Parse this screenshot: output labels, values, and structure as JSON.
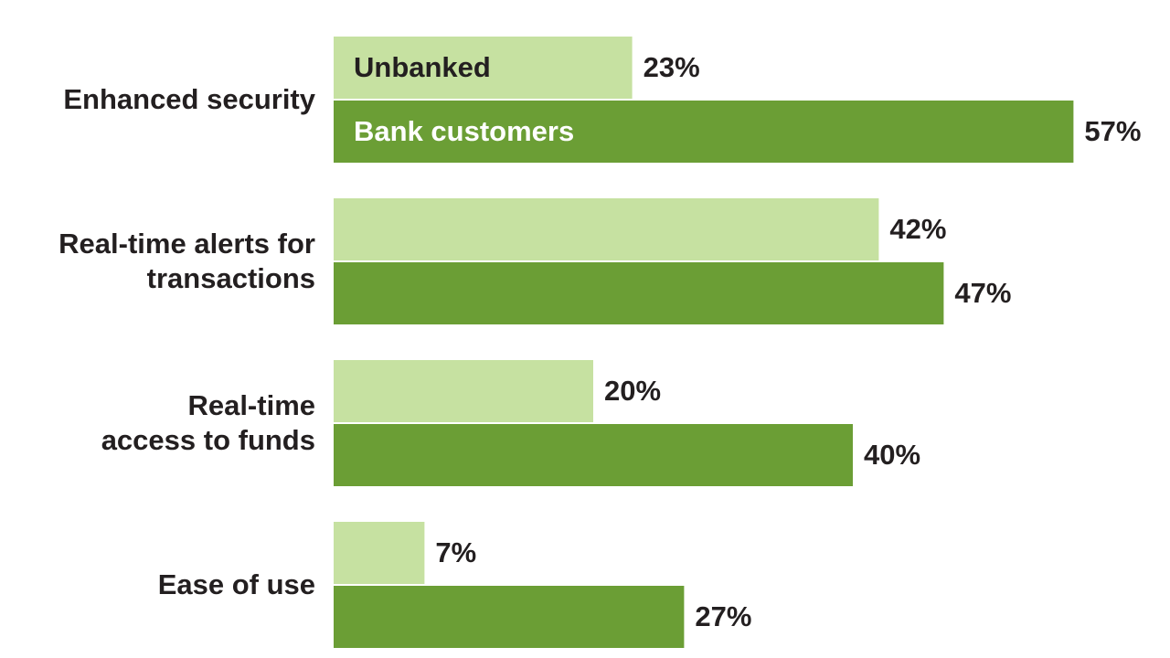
{
  "chart_data": {
    "type": "bar",
    "orientation": "horizontal",
    "categories": [
      "Enhanced security",
      "Real-time alerts for\ntransactions",
      "Real-time\naccess to funds",
      "Ease of use"
    ],
    "series": [
      {
        "name": "Unbanked",
        "color": "#c6e1a1",
        "values": [
          23,
          42,
          20,
          7
        ],
        "value_labels": [
          "23%",
          "42%",
          "20%",
          "7%"
        ]
      },
      {
        "name": "Bank customers",
        "color": "#6b9e35",
        "values": [
          57,
          47,
          40,
          27
        ],
        "value_labels": [
          "57%",
          "47%",
          "40%",
          "27%"
        ]
      }
    ]
  }
}
